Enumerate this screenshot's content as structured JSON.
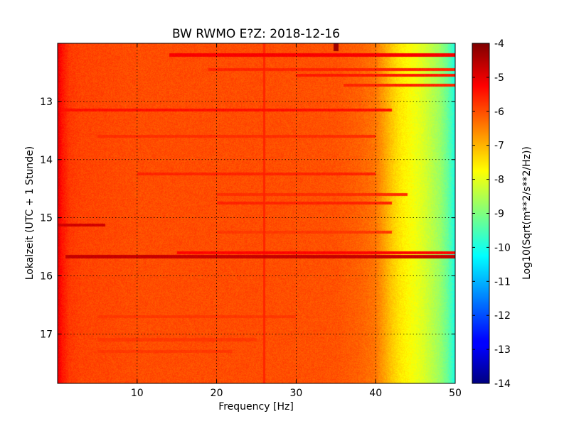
{
  "chart_data": {
    "type": "heatmap",
    "title": "BW RWMO E?Z: 2018-12-16",
    "xlabel": "Frequency [Hz]",
    "ylabel": "Lokalzeit (UTC + 1 Stunde)",
    "xlim": [
      0,
      50
    ],
    "ylim": [
      12.0,
      17.85
    ],
    "y_inverted": true,
    "grid": true,
    "x_ticks": [
      10,
      20,
      30,
      40,
      50
    ],
    "y_ticks": [
      13,
      14,
      15,
      16,
      17
    ],
    "colorbar": {
      "label": "Log10(Sqrt(m**2/s**2/Hz))",
      "range": [
        -14,
        -4
      ],
      "ticks": [
        -4,
        -5,
        -6,
        -7,
        -8,
        -9,
        -10,
        -11,
        -12,
        -13,
        -14
      ],
      "colormap": "jet"
    },
    "spectral_profile": {
      "frequency_hz": [
        0,
        0.5,
        1.5,
        3,
        10,
        25,
        35,
        38,
        40,
        41,
        42,
        43,
        44,
        45,
        46,
        47,
        48,
        49,
        49.5,
        50
      ],
      "log10_psd": [
        -5.0,
        -5.4,
        -5.8,
        -5.9,
        -6.0,
        -6.0,
        -6.05,
        -6.2,
        -6.4,
        -6.8,
        -7.2,
        -7.5,
        -7.7,
        -7.9,
        -8.1,
        -8.4,
        -8.7,
        -9.2,
        -9.6,
        -10.0
      ]
    },
    "bands": [
      {
        "time": 12.2,
        "freq_range": [
          14,
          50
        ],
        "log10_psd": -5.2
      },
      {
        "time": 12.45,
        "freq_range": [
          19,
          50
        ],
        "log10_psd": -5.6
      },
      {
        "time": 12.55,
        "freq_range": [
          30,
          50
        ],
        "log10_psd": -5.5
      },
      {
        "time": 12.72,
        "freq_range": [
          36,
          50
        ],
        "log10_psd": -5.6
      },
      {
        "time": 13.15,
        "freq_range": [
          0,
          42
        ],
        "log10_psd": -5.4
      },
      {
        "time": 13.6,
        "freq_range": [
          5,
          40
        ],
        "log10_psd": -5.7
      },
      {
        "time": 14.25,
        "freq_range": [
          10,
          40
        ],
        "log10_psd": -5.6
      },
      {
        "time": 14.6,
        "freq_range": [
          20,
          44
        ],
        "log10_psd": -5.7
      },
      {
        "time": 14.75,
        "freq_range": [
          20,
          42
        ],
        "log10_psd": -5.6
      },
      {
        "time": 15.13,
        "freq_range": [
          0,
          6
        ],
        "log10_psd": -4.8
      },
      {
        "time": 15.25,
        "freq_range": [
          20,
          42
        ],
        "log10_psd": -5.8
      },
      {
        "time": 15.6,
        "freq_range": [
          15,
          50
        ],
        "log10_psd": -5.3
      },
      {
        "time": 15.67,
        "freq_range": [
          1,
          50
        ],
        "log10_psd": -4.7
      },
      {
        "time": 16.7,
        "freq_range": [
          5,
          30
        ],
        "log10_psd": -5.8
      },
      {
        "time": 17.1,
        "freq_range": [
          5,
          25
        ],
        "log10_psd": -5.8
      },
      {
        "time": 17.3,
        "freq_range": [
          5,
          22
        ],
        "log10_psd": -5.8
      }
    ],
    "peaks": [
      {
        "time": 12.05,
        "frequency": 35,
        "log10_psd": -4.3
      }
    ],
    "lines": [
      {
        "frequency": 26,
        "log10_psd": -5.6
      }
    ]
  }
}
